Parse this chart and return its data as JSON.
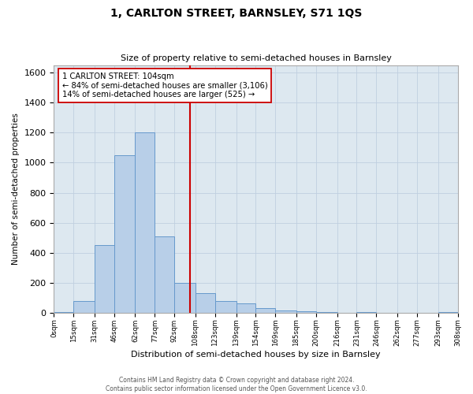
{
  "title": "1, CARLTON STREET, BARNSLEY, S71 1QS",
  "subtitle": "Size of property relative to semi-detached houses in Barnsley",
  "xlabel": "Distribution of semi-detached houses by size in Barnsley",
  "ylabel": "Number of semi-detached properties",
  "footer_line1": "Contains HM Land Registry data © Crown copyright and database right 2024.",
  "footer_line2": "Contains public sector information licensed under the Open Government Licence v3.0.",
  "bin_edges": [
    0,
    15,
    31,
    46,
    62,
    77,
    92,
    108,
    123,
    139,
    154,
    169,
    185,
    200,
    216,
    231,
    246,
    262,
    277,
    293,
    308
  ],
  "bin_labels": [
    "0sqm",
    "15sqm",
    "31sqm",
    "46sqm",
    "62sqm",
    "77sqm",
    "92sqm",
    "108sqm",
    "123sqm",
    "139sqm",
    "154sqm",
    "169sqm",
    "185sqm",
    "200sqm",
    "216sqm",
    "231sqm",
    "246sqm",
    "262sqm",
    "277sqm",
    "293sqm",
    "308sqm"
  ],
  "bar_values": [
    5,
    80,
    450,
    1050,
    1200,
    510,
    200,
    130,
    80,
    60,
    30,
    15,
    10,
    5,
    0,
    3,
    0,
    0,
    0,
    3
  ],
  "bar_color": "#b8cfe8",
  "bar_edge_color": "#6699cc",
  "bar_edge_width": 0.7,
  "grid_color": "#c0cfe0",
  "background_color": "#dde8f0",
  "property_line_x": 104,
  "property_line_color": "#cc0000",
  "annotation_text": "1 CARLTON STREET: 104sqm\n← 84% of semi-detached houses are smaller (3,106)\n14% of semi-detached houses are larger (525) →",
  "annotation_box_facecolor": "#ffffff",
  "annotation_box_edgecolor": "#cc0000",
  "ylim": [
    0,
    1650
  ],
  "yticks": [
    0,
    200,
    400,
    600,
    800,
    1000,
    1200,
    1400,
    1600
  ]
}
